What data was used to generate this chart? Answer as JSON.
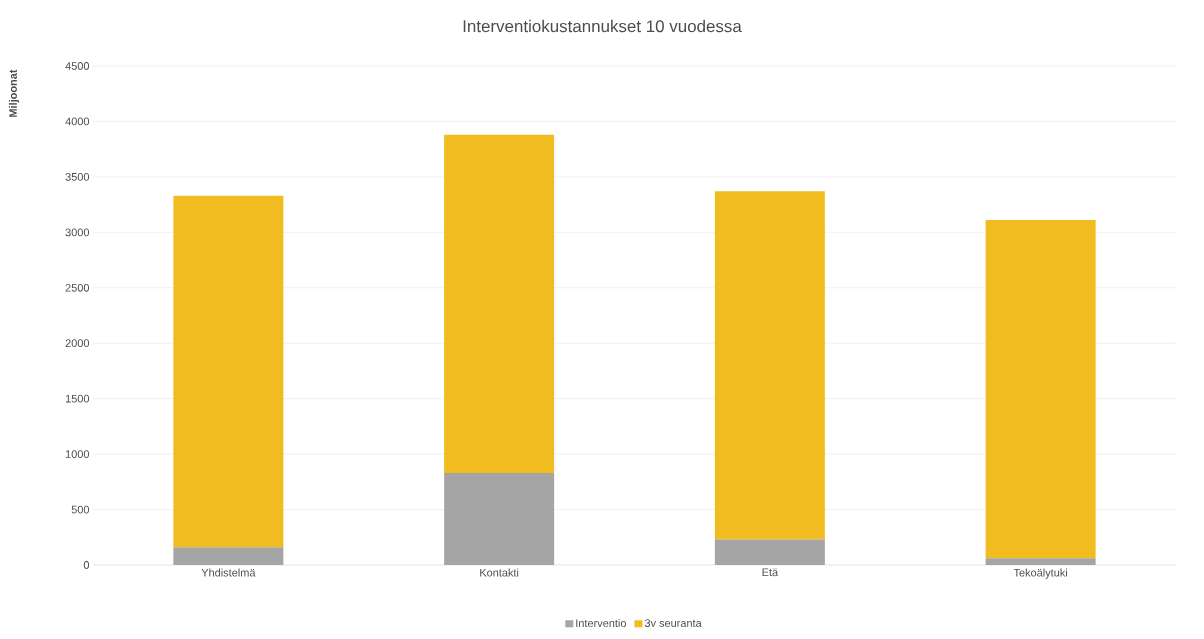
{
  "chart_data": {
    "type": "bar",
    "title": "Interventiokustannukset 10 vuodessa",
    "ylabel": "Miljoonat",
    "categories": [
      "Yhdistelmä",
      "Kontakti",
      "Etä",
      "Tekoälytuki"
    ],
    "series": [
      {
        "name": "Interventio",
        "color": "#a5a5a5",
        "values": [
          160,
          830,
          230,
          60
        ]
      },
      {
        "name": "3v seuranta",
        "color": "#f0bc20",
        "values": [
          3170,
          3050,
          3140,
          3050
        ]
      }
    ],
    "stacked": true,
    "ylim": [
      0,
      4500
    ],
    "yticks": [
      0,
      500,
      1000,
      1500,
      2000,
      2500,
      3000,
      3500,
      4000,
      4500
    ],
    "grid": "y",
    "legend": "bottom"
  }
}
